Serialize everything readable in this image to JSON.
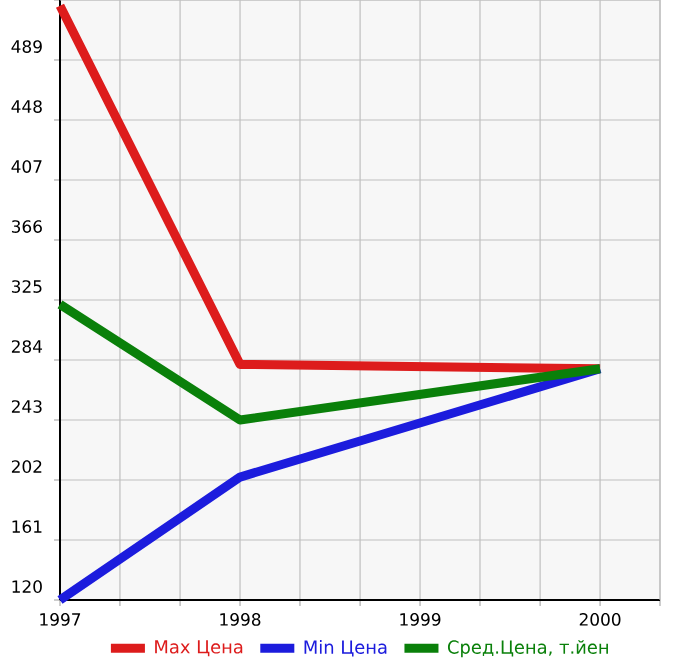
{
  "chart_data": {
    "type": "line",
    "x": [
      1997,
      1998,
      2000
    ],
    "series": [
      {
        "name": "Max Цена",
        "color": "#dd1c1c",
        "values": [
          526,
          281,
          278
        ]
      },
      {
        "name": "Min Цена",
        "color": "#1c1cdd",
        "values": [
          120,
          204,
          278
        ]
      },
      {
        "name": "Сред.Цена, т.йен",
        "color": "#0a800a",
        "values": [
          322,
          243,
          278
        ]
      }
    ],
    "xlim": [
      1997,
      2000.333
    ],
    "xticks": [
      1997,
      {
        "value": 1997.333,
        "label": null
      },
      {
        "value": 1997.667,
        "label": null
      },
      1998,
      {
        "value": 1998.333,
        "label": null
      },
      {
        "value": 1998.667,
        "label": null
      },
      1999,
      {
        "value": 1999.333,
        "label": null
      },
      {
        "value": 1999.667,
        "label": null
      },
      2000,
      {
        "value": 2000.333,
        "label": null
      }
    ],
    "ylim": [
      120,
      530
    ],
    "yticks": [
      120,
      161,
      202,
      243,
      284,
      325,
      366,
      407,
      448,
      489,
      {
        "value": 530,
        "label": null
      }
    ],
    "grid": true,
    "legend": "bottom",
    "marker": "none",
    "line_style": "solid"
  }
}
